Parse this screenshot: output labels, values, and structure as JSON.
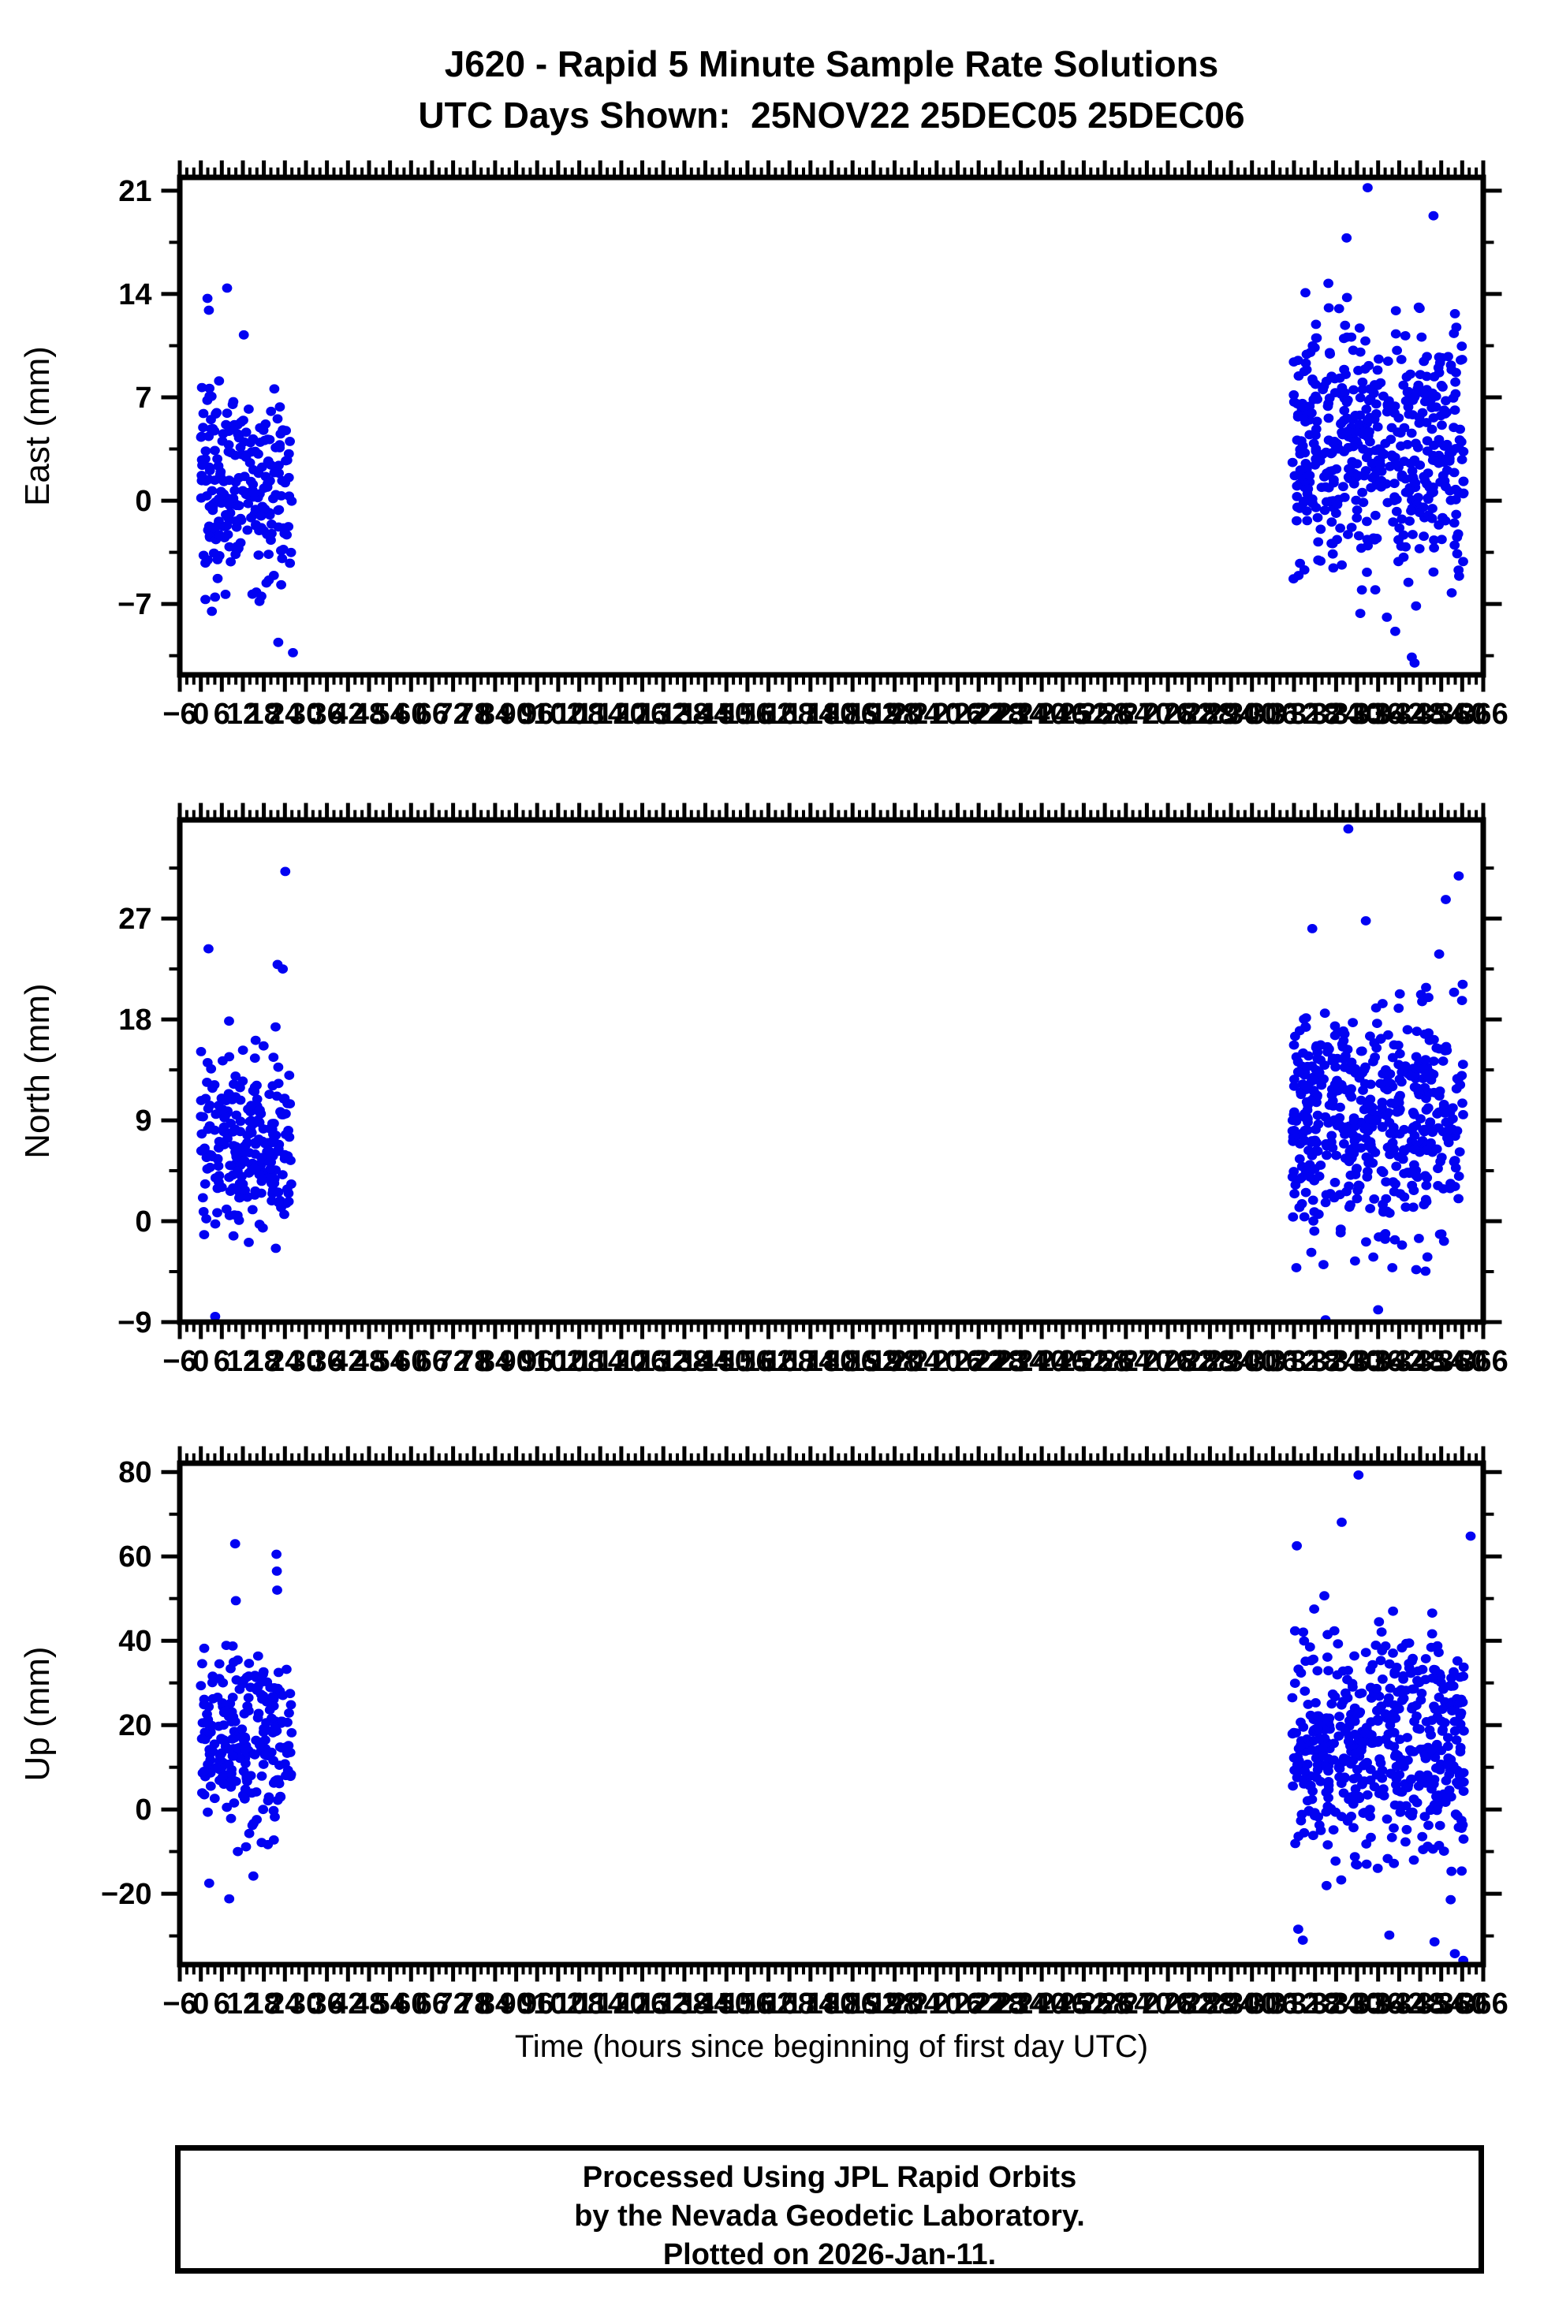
{
  "title": {
    "line1": "J620 - Rapid 5 Minute Sample Rate Solutions",
    "line2": "UTC Days Shown:  25NOV22 25DEC05 25DEC06"
  },
  "xaxis": {
    "label": "Time (hours since beginning of first day UTC)",
    "min": -6,
    "max": 366,
    "tick_major": 6,
    "tick_minor": 2
  },
  "footer": {
    "lines": [
      "Processed Using JPL Rapid Orbits",
      "by the Nevada Geodetic Laboratory.",
      "Plotted on 2026-Jan-11."
    ]
  },
  "colors": {
    "marker": "#0202f2",
    "axes": "#000000",
    "background": "#ffffff"
  },
  "chart_data": [
    {
      "type": "scatter",
      "component": "East",
      "ylabel": "East (mm)",
      "ylim": [
        -11.8,
        21.9
      ],
      "yticks_labeled": [
        -7,
        0,
        7,
        14,
        21
      ],
      "ytick_major": 7,
      "ytick_minor": 3.5,
      "clusters": [
        {
          "t0": 0,
          "t1": 26,
          "n": 235,
          "mean": 0.9,
          "std": 3.3,
          "min": -8.5,
          "max": 12.5,
          "seed": 11
        },
        {
          "t0": 311.5,
          "t1": 360.5,
          "n": 500,
          "mean": 3.6,
          "std": 4.0,
          "min": -9.5,
          "max": 18.0,
          "seed": 12
        }
      ],
      "outliers": [
        [
          7.5,
          14.4
        ],
        [
          1.9,
          13.7
        ],
        [
          2.3,
          12.9
        ],
        [
          26.3,
          -10.3
        ],
        [
          22.1,
          -9.6
        ],
        [
          333.0,
          21.2
        ],
        [
          351.8,
          19.3
        ],
        [
          327.0,
          17.8
        ],
        [
          345.6,
          -10.6
        ],
        [
          346.4,
          -11.0
        ]
      ]
    },
    {
      "type": "scatter",
      "component": "North",
      "ylabel": "North (mm)",
      "ylim": [
        -9.0,
        35.8
      ],
      "yticks_labeled": [
        -9,
        0,
        9,
        18,
        27
      ],
      "ytick_major": 9,
      "ytick_minor": 4.5,
      "clusters": [
        {
          "t0": 0,
          "t1": 26,
          "n": 235,
          "mean": 7.3,
          "std": 4.0,
          "min": -6.5,
          "max": 20.5,
          "seed": 21
        },
        {
          "t0": 311.5,
          "t1": 360.5,
          "n": 500,
          "mean": 9.2,
          "std": 5.2,
          "min": -4.5,
          "max": 24.5,
          "seed": 22
        }
      ],
      "outliers": [
        [
          24.1,
          31.2
        ],
        [
          2.2,
          24.3
        ],
        [
          21.9,
          22.9
        ],
        [
          23.4,
          22.5
        ],
        [
          4.1,
          -8.5
        ],
        [
          327.5,
          35.0
        ],
        [
          359.0,
          30.8
        ],
        [
          355.3,
          28.7
        ],
        [
          332.5,
          26.8
        ],
        [
          317.2,
          26.1
        ],
        [
          321.0,
          -8.8
        ],
        [
          336.0,
          -7.9
        ]
      ]
    },
    {
      "type": "scatter",
      "component": "Up",
      "ylabel": "Up (mm)",
      "ylim": [
        -36.8,
        82.1
      ],
      "yticks_labeled": [
        -20,
        0,
        20,
        40,
        60,
        80
      ],
      "ytick_major": 20,
      "ytick_minor": 10,
      "clusters": [
        {
          "t0": 0,
          "t1": 26,
          "n": 235,
          "mean": 16,
          "std": 11,
          "min": -13,
          "max": 45,
          "seed": 31
        },
        {
          "t0": 311.5,
          "t1": 360.5,
          "n": 500,
          "mean": 15.5,
          "std": 13,
          "min": -25,
          "max": 55,
          "seed": 32
        }
      ],
      "outliers": [
        [
          9.8,
          63.0
        ],
        [
          21.6,
          60.5
        ],
        [
          21.7,
          56.5
        ],
        [
          21.8,
          52.0
        ],
        [
          10.0,
          49.5
        ],
        [
          8.1,
          -21.2
        ],
        [
          2.4,
          -17.5
        ],
        [
          15.0,
          -15.8
        ],
        [
          330.4,
          79.3
        ],
        [
          325.6,
          68.1
        ],
        [
          362.4,
          64.8
        ],
        [
          312.8,
          62.5
        ],
        [
          313.2,
          -28.4
        ],
        [
          314.5,
          -31.0
        ],
        [
          339.2,
          -29.8
        ],
        [
          352.1,
          -31.4
        ],
        [
          357.9,
          -34.2
        ],
        [
          360.3,
          -35.8
        ]
      ]
    }
  ]
}
